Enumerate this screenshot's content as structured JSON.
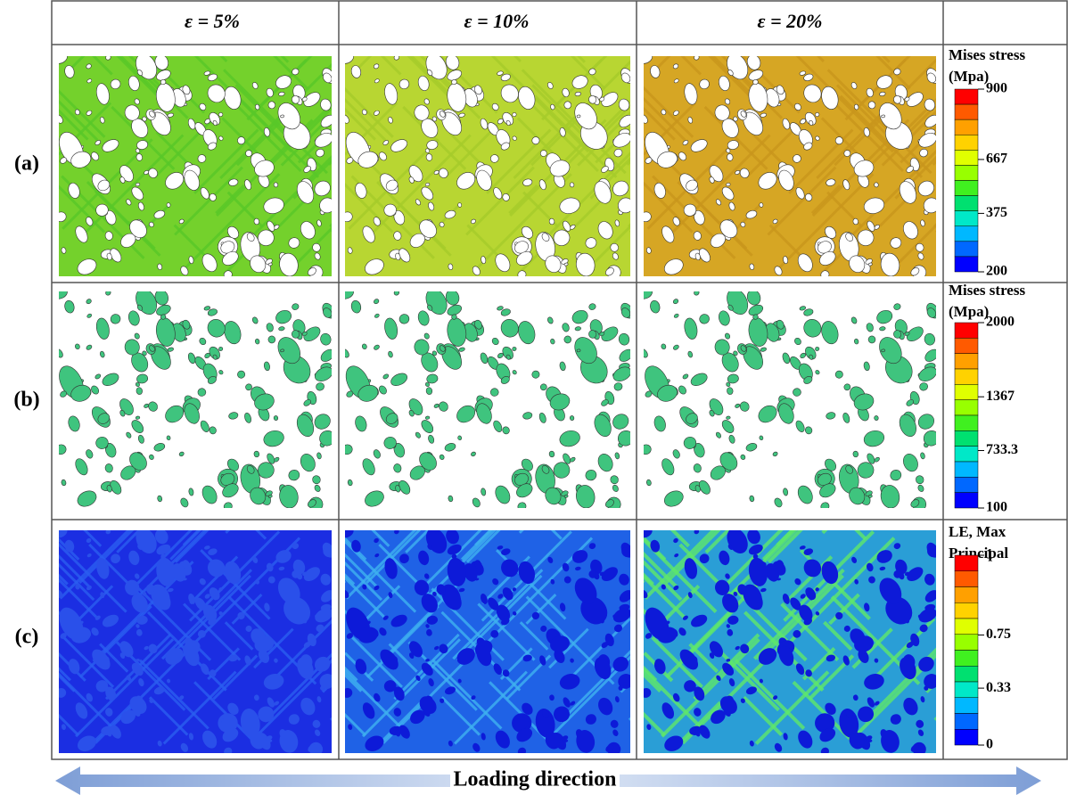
{
  "columns": [
    "ε = 5%",
    "ε = 10%",
    "ε = 20%"
  ],
  "rows": [
    {
      "label": "(a)",
      "legend": {
        "title": [
          "Mises stress",
          "(Mpa)"
        ],
        "ticks": [
          "900",
          "667",
          "375",
          "200"
        ]
      }
    },
    {
      "label": "(b)",
      "legend": {
        "title": [
          "Mises stress",
          "(Mpa)"
        ],
        "ticks": [
          "2000",
          "1367",
          "733.3",
          "100"
        ]
      }
    },
    {
      "label": "(c)",
      "legend": {
        "title": [
          "LE, Max",
          "Principal"
        ],
        "ticks": [
          "1",
          "0.75",
          "0.33",
          "0"
        ]
      }
    }
  ],
  "footer": "Loading direction"
}
